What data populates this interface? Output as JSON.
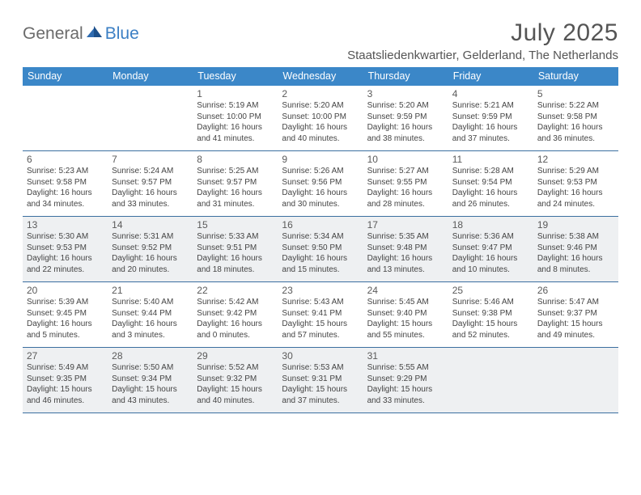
{
  "logo": {
    "part1": "General",
    "part2": "Blue"
  },
  "title": "July 2025",
  "location": "Staatsliedenkwartier, Gelderland, The Netherlands",
  "colors": {
    "header_bg": "#3b87c8",
    "header_text": "#ffffff",
    "row_border": "#3b6fa0",
    "shade_bg": "#eef0f2",
    "text": "#444444",
    "logo_gray": "#6b6b6b",
    "logo_blue": "#3b7fc4"
  },
  "day_names": [
    "Sunday",
    "Monday",
    "Tuesday",
    "Wednesday",
    "Thursday",
    "Friday",
    "Saturday"
  ],
  "weeks": [
    {
      "shade": false,
      "cells": [
        {
          "n": "",
          "sr": "",
          "ss": "",
          "dl": ""
        },
        {
          "n": "",
          "sr": "",
          "ss": "",
          "dl": ""
        },
        {
          "n": "1",
          "sr": "Sunrise: 5:19 AM",
          "ss": "Sunset: 10:00 PM",
          "dl": "Daylight: 16 hours and 41 minutes."
        },
        {
          "n": "2",
          "sr": "Sunrise: 5:20 AM",
          "ss": "Sunset: 10:00 PM",
          "dl": "Daylight: 16 hours and 40 minutes."
        },
        {
          "n": "3",
          "sr": "Sunrise: 5:20 AM",
          "ss": "Sunset: 9:59 PM",
          "dl": "Daylight: 16 hours and 38 minutes."
        },
        {
          "n": "4",
          "sr": "Sunrise: 5:21 AM",
          "ss": "Sunset: 9:59 PM",
          "dl": "Daylight: 16 hours and 37 minutes."
        },
        {
          "n": "5",
          "sr": "Sunrise: 5:22 AM",
          "ss": "Sunset: 9:58 PM",
          "dl": "Daylight: 16 hours and 36 minutes."
        }
      ]
    },
    {
      "shade": false,
      "cells": [
        {
          "n": "6",
          "sr": "Sunrise: 5:23 AM",
          "ss": "Sunset: 9:58 PM",
          "dl": "Daylight: 16 hours and 34 minutes."
        },
        {
          "n": "7",
          "sr": "Sunrise: 5:24 AM",
          "ss": "Sunset: 9:57 PM",
          "dl": "Daylight: 16 hours and 33 minutes."
        },
        {
          "n": "8",
          "sr": "Sunrise: 5:25 AM",
          "ss": "Sunset: 9:57 PM",
          "dl": "Daylight: 16 hours and 31 minutes."
        },
        {
          "n": "9",
          "sr": "Sunrise: 5:26 AM",
          "ss": "Sunset: 9:56 PM",
          "dl": "Daylight: 16 hours and 30 minutes."
        },
        {
          "n": "10",
          "sr": "Sunrise: 5:27 AM",
          "ss": "Sunset: 9:55 PM",
          "dl": "Daylight: 16 hours and 28 minutes."
        },
        {
          "n": "11",
          "sr": "Sunrise: 5:28 AM",
          "ss": "Sunset: 9:54 PM",
          "dl": "Daylight: 16 hours and 26 minutes."
        },
        {
          "n": "12",
          "sr": "Sunrise: 5:29 AM",
          "ss": "Sunset: 9:53 PM",
          "dl": "Daylight: 16 hours and 24 minutes."
        }
      ]
    },
    {
      "shade": true,
      "cells": [
        {
          "n": "13",
          "sr": "Sunrise: 5:30 AM",
          "ss": "Sunset: 9:53 PM",
          "dl": "Daylight: 16 hours and 22 minutes."
        },
        {
          "n": "14",
          "sr": "Sunrise: 5:31 AM",
          "ss": "Sunset: 9:52 PM",
          "dl": "Daylight: 16 hours and 20 minutes."
        },
        {
          "n": "15",
          "sr": "Sunrise: 5:33 AM",
          "ss": "Sunset: 9:51 PM",
          "dl": "Daylight: 16 hours and 18 minutes."
        },
        {
          "n": "16",
          "sr": "Sunrise: 5:34 AM",
          "ss": "Sunset: 9:50 PM",
          "dl": "Daylight: 16 hours and 15 minutes."
        },
        {
          "n": "17",
          "sr": "Sunrise: 5:35 AM",
          "ss": "Sunset: 9:48 PM",
          "dl": "Daylight: 16 hours and 13 minutes."
        },
        {
          "n": "18",
          "sr": "Sunrise: 5:36 AM",
          "ss": "Sunset: 9:47 PM",
          "dl": "Daylight: 16 hours and 10 minutes."
        },
        {
          "n": "19",
          "sr": "Sunrise: 5:38 AM",
          "ss": "Sunset: 9:46 PM",
          "dl": "Daylight: 16 hours and 8 minutes."
        }
      ]
    },
    {
      "shade": false,
      "cells": [
        {
          "n": "20",
          "sr": "Sunrise: 5:39 AM",
          "ss": "Sunset: 9:45 PM",
          "dl": "Daylight: 16 hours and 5 minutes."
        },
        {
          "n": "21",
          "sr": "Sunrise: 5:40 AM",
          "ss": "Sunset: 9:44 PM",
          "dl": "Daylight: 16 hours and 3 minutes."
        },
        {
          "n": "22",
          "sr": "Sunrise: 5:42 AM",
          "ss": "Sunset: 9:42 PM",
          "dl": "Daylight: 16 hours and 0 minutes."
        },
        {
          "n": "23",
          "sr": "Sunrise: 5:43 AM",
          "ss": "Sunset: 9:41 PM",
          "dl": "Daylight: 15 hours and 57 minutes."
        },
        {
          "n": "24",
          "sr": "Sunrise: 5:45 AM",
          "ss": "Sunset: 9:40 PM",
          "dl": "Daylight: 15 hours and 55 minutes."
        },
        {
          "n": "25",
          "sr": "Sunrise: 5:46 AM",
          "ss": "Sunset: 9:38 PM",
          "dl": "Daylight: 15 hours and 52 minutes."
        },
        {
          "n": "26",
          "sr": "Sunrise: 5:47 AM",
          "ss": "Sunset: 9:37 PM",
          "dl": "Daylight: 15 hours and 49 minutes."
        }
      ]
    },
    {
      "shade": true,
      "cells": [
        {
          "n": "27",
          "sr": "Sunrise: 5:49 AM",
          "ss": "Sunset: 9:35 PM",
          "dl": "Daylight: 15 hours and 46 minutes."
        },
        {
          "n": "28",
          "sr": "Sunrise: 5:50 AM",
          "ss": "Sunset: 9:34 PM",
          "dl": "Daylight: 15 hours and 43 minutes."
        },
        {
          "n": "29",
          "sr": "Sunrise: 5:52 AM",
          "ss": "Sunset: 9:32 PM",
          "dl": "Daylight: 15 hours and 40 minutes."
        },
        {
          "n": "30",
          "sr": "Sunrise: 5:53 AM",
          "ss": "Sunset: 9:31 PM",
          "dl": "Daylight: 15 hours and 37 minutes."
        },
        {
          "n": "31",
          "sr": "Sunrise: 5:55 AM",
          "ss": "Sunset: 9:29 PM",
          "dl": "Daylight: 15 hours and 33 minutes."
        },
        {
          "n": "",
          "sr": "",
          "ss": "",
          "dl": ""
        },
        {
          "n": "",
          "sr": "",
          "ss": "",
          "dl": ""
        }
      ]
    }
  ]
}
